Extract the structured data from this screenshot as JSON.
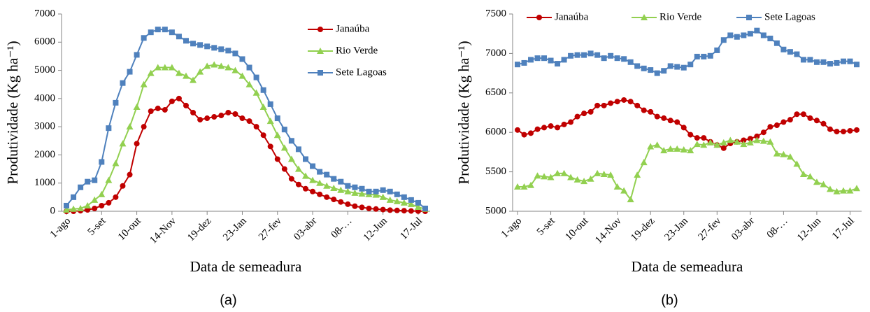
{
  "chart_data": [
    {
      "type": "line",
      "label": "(a)",
      "ylabel": "Produtividade (Kg ha⁻¹)",
      "xlabel": "Data de semeadura",
      "legend": "upper right",
      "categories": [
        "1-ago",
        null,
        null,
        null,
        null,
        "5-set",
        null,
        null,
        null,
        null,
        "10-out",
        null,
        null,
        null,
        null,
        "14-Nov",
        null,
        null,
        null,
        null,
        "19-dez",
        null,
        null,
        null,
        null,
        "23-Jan",
        null,
        null,
        null,
        null,
        "27-fev",
        null,
        null,
        null,
        null,
        "03-abr",
        null,
        null,
        null,
        null,
        "08-…",
        null,
        null,
        null,
        null,
        "12-Jun",
        null,
        null,
        null,
        null,
        "17-Jul",
        null
      ],
      "ylim": [
        0,
        7000
      ],
      "yticks": [
        0,
        1000,
        2000,
        3000,
        4000,
        5000,
        6000,
        7000
      ],
      "series": [
        {
          "name": "Janaúba",
          "color": "#c00000",
          "marker": "circle",
          "values": [
            0,
            0,
            20,
            50,
            100,
            200,
            300,
            500,
            900,
            1300,
            2400,
            3000,
            3550,
            3650,
            3600,
            3900,
            4000,
            3750,
            3500,
            3250,
            3300,
            3350,
            3400,
            3500,
            3450,
            3300,
            3200,
            3000,
            2700,
            2300,
            1850,
            1500,
            1150,
            950,
            800,
            700,
            600,
            500,
            420,
            330,
            250,
            180,
            140,
            100,
            80,
            60,
            40,
            30,
            20,
            10,
            5,
            0
          ]
        },
        {
          "name": "Rio Verde",
          "color": "#92d050",
          "marker": "triangle",
          "values": [
            50,
            80,
            100,
            200,
            400,
            600,
            1100,
            1700,
            2400,
            3000,
            3700,
            4500,
            4900,
            5100,
            5100,
            5100,
            4900,
            4800,
            4650,
            4950,
            5150,
            5200,
            5150,
            5100,
            5000,
            4800,
            4500,
            4200,
            3700,
            3200,
            2700,
            2250,
            1850,
            1500,
            1250,
            1100,
            1000,
            900,
            820,
            750,
            700,
            650,
            620,
            600,
            580,
            500,
            400,
            350,
            300,
            250,
            150,
            80
          ]
        },
        {
          "name": "Sete Lagoas",
          "color": "#4f81bd",
          "marker": "square",
          "values": [
            200,
            500,
            850,
            1050,
            1100,
            1750,
            2950,
            3850,
            4550,
            4950,
            5550,
            6150,
            6350,
            6450,
            6450,
            6350,
            6200,
            6050,
            5950,
            5900,
            5850,
            5800,
            5750,
            5700,
            5600,
            5400,
            5100,
            4750,
            4300,
            3800,
            3300,
            2900,
            2500,
            2200,
            1850,
            1600,
            1400,
            1300,
            1150,
            1050,
            900,
            850,
            800,
            700,
            700,
            750,
            700,
            600,
            500,
            400,
            300,
            100
          ]
        }
      ]
    },
    {
      "type": "line",
      "label": "(b)",
      "ylabel": "Produtividade (Kg ha⁻¹)",
      "xlabel": "Data de semeadura",
      "legend": "top",
      "categories": [
        "1-ago",
        null,
        null,
        null,
        null,
        "5-set",
        null,
        null,
        null,
        null,
        "10-out",
        null,
        null,
        null,
        null,
        "14-Nov",
        null,
        null,
        null,
        null,
        "19-dez",
        null,
        null,
        null,
        null,
        "23-Jan",
        null,
        null,
        null,
        null,
        "27-fev",
        null,
        null,
        null,
        null,
        "03-abr",
        null,
        null,
        null,
        null,
        "08-…",
        null,
        null,
        null,
        null,
        "12-Jun",
        null,
        null,
        null,
        null,
        "17-Jul",
        null
      ],
      "ylim": [
        5000,
        7500
      ],
      "yticks": [
        5000,
        5500,
        6000,
        6500,
        7000,
        7500
      ],
      "series": [
        {
          "name": "Janaúba",
          "color": "#c00000",
          "marker": "circle",
          "values": [
            6030,
            5970,
            5990,
            6040,
            6060,
            6080,
            6060,
            6100,
            6130,
            6200,
            6240,
            6260,
            6340,
            6340,
            6370,
            6390,
            6410,
            6390,
            6340,
            6280,
            6260,
            6200,
            6180,
            6150,
            6130,
            6060,
            5970,
            5930,
            5930,
            5880,
            5840,
            5800,
            5860,
            5880,
            5900,
            5920,
            5950,
            6000,
            6070,
            6090,
            6130,
            6160,
            6230,
            6230,
            6180,
            6150,
            6110,
            6040,
            6010,
            6010,
            6020,
            6030
          ]
        },
        {
          "name": "Rio Verde",
          "color": "#92d050",
          "marker": "triangle",
          "values": [
            5310,
            5310,
            5330,
            5450,
            5440,
            5430,
            5480,
            5480,
            5430,
            5400,
            5380,
            5410,
            5480,
            5470,
            5460,
            5310,
            5260,
            5150,
            5460,
            5620,
            5820,
            5840,
            5770,
            5790,
            5790,
            5780,
            5770,
            5850,
            5840,
            5870,
            5840,
            5870,
            5900,
            5880,
            5850,
            5870,
            5900,
            5890,
            5880,
            5730,
            5720,
            5690,
            5600,
            5470,
            5440,
            5370,
            5340,
            5280,
            5250,
            5260,
            5260,
            5290
          ]
        },
        {
          "name": "Sete Lagoas",
          "color": "#4f81bd",
          "marker": "square",
          "values": [
            6860,
            6880,
            6920,
            6940,
            6940,
            6910,
            6870,
            6920,
            6970,
            6980,
            6980,
            7000,
            6980,
            6940,
            6970,
            6940,
            6930,
            6890,
            6840,
            6810,
            6790,
            6750,
            6780,
            6840,
            6830,
            6820,
            6860,
            6960,
            6960,
            6970,
            7040,
            7170,
            7230,
            7210,
            7230,
            7250,
            7290,
            7230,
            7190,
            7130,
            7050,
            7020,
            6990,
            6920,
            6920,
            6890,
            6890,
            6870,
            6880,
            6900,
            6900,
            6860
          ]
        }
      ]
    }
  ]
}
